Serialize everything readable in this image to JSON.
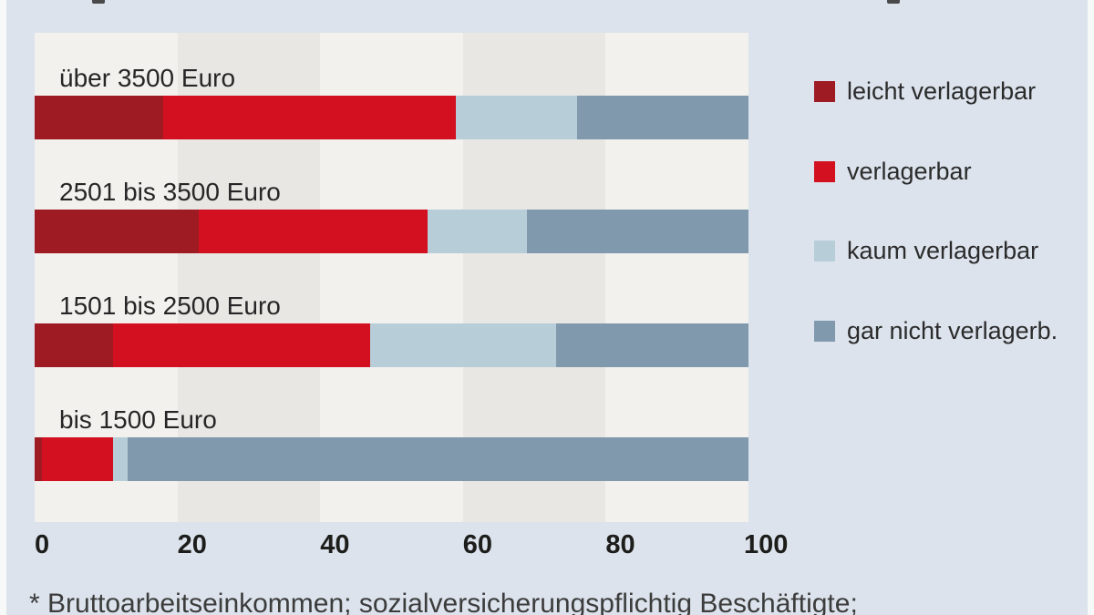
{
  "colors": {
    "background": "#dce3ec",
    "plot_band_light": "#f2f1ed",
    "plot_band_dark": "#e8e7e3",
    "edge_strip": "#f7f8f8",
    "text": "#262626",
    "axis_text": "#1d1d1b"
  },
  "chart_data": {
    "type": "bar",
    "orientation": "horizontal",
    "stacked": true,
    "unit": "percent",
    "categories": [
      "über 3500 Euro",
      "2501 bis 3500 Euro",
      "1501 bis 2500 Euro",
      "bis 1500 Euro"
    ],
    "series": [
      {
        "name": "leicht verlagerbar",
        "color": "#9e1b23",
        "values": [
          18,
          23,
          11,
          1
        ]
      },
      {
        "name": "verlagerbar",
        "color": "#d2101f",
        "values": [
          41,
          32,
          36,
          10
        ]
      },
      {
        "name": "kaum verlagerbar",
        "color": "#b7cdd8",
        "values": [
          17,
          14,
          26,
          2
        ]
      },
      {
        "name": "gar nicht verlagerb.",
        "color": "#8099ad",
        "values": [
          24,
          31,
          27,
          87
        ]
      }
    ],
    "x_ticks": [
      "0",
      "20",
      "40",
      "60",
      "80",
      "100"
    ],
    "xlim": [
      0,
      100
    ],
    "grid": "alternating-vertical-bands",
    "legend_position": "right",
    "footnote": "* Bruttoarbeitseinkommen; sozialversicherungspflichtig Beschäftigte;"
  }
}
